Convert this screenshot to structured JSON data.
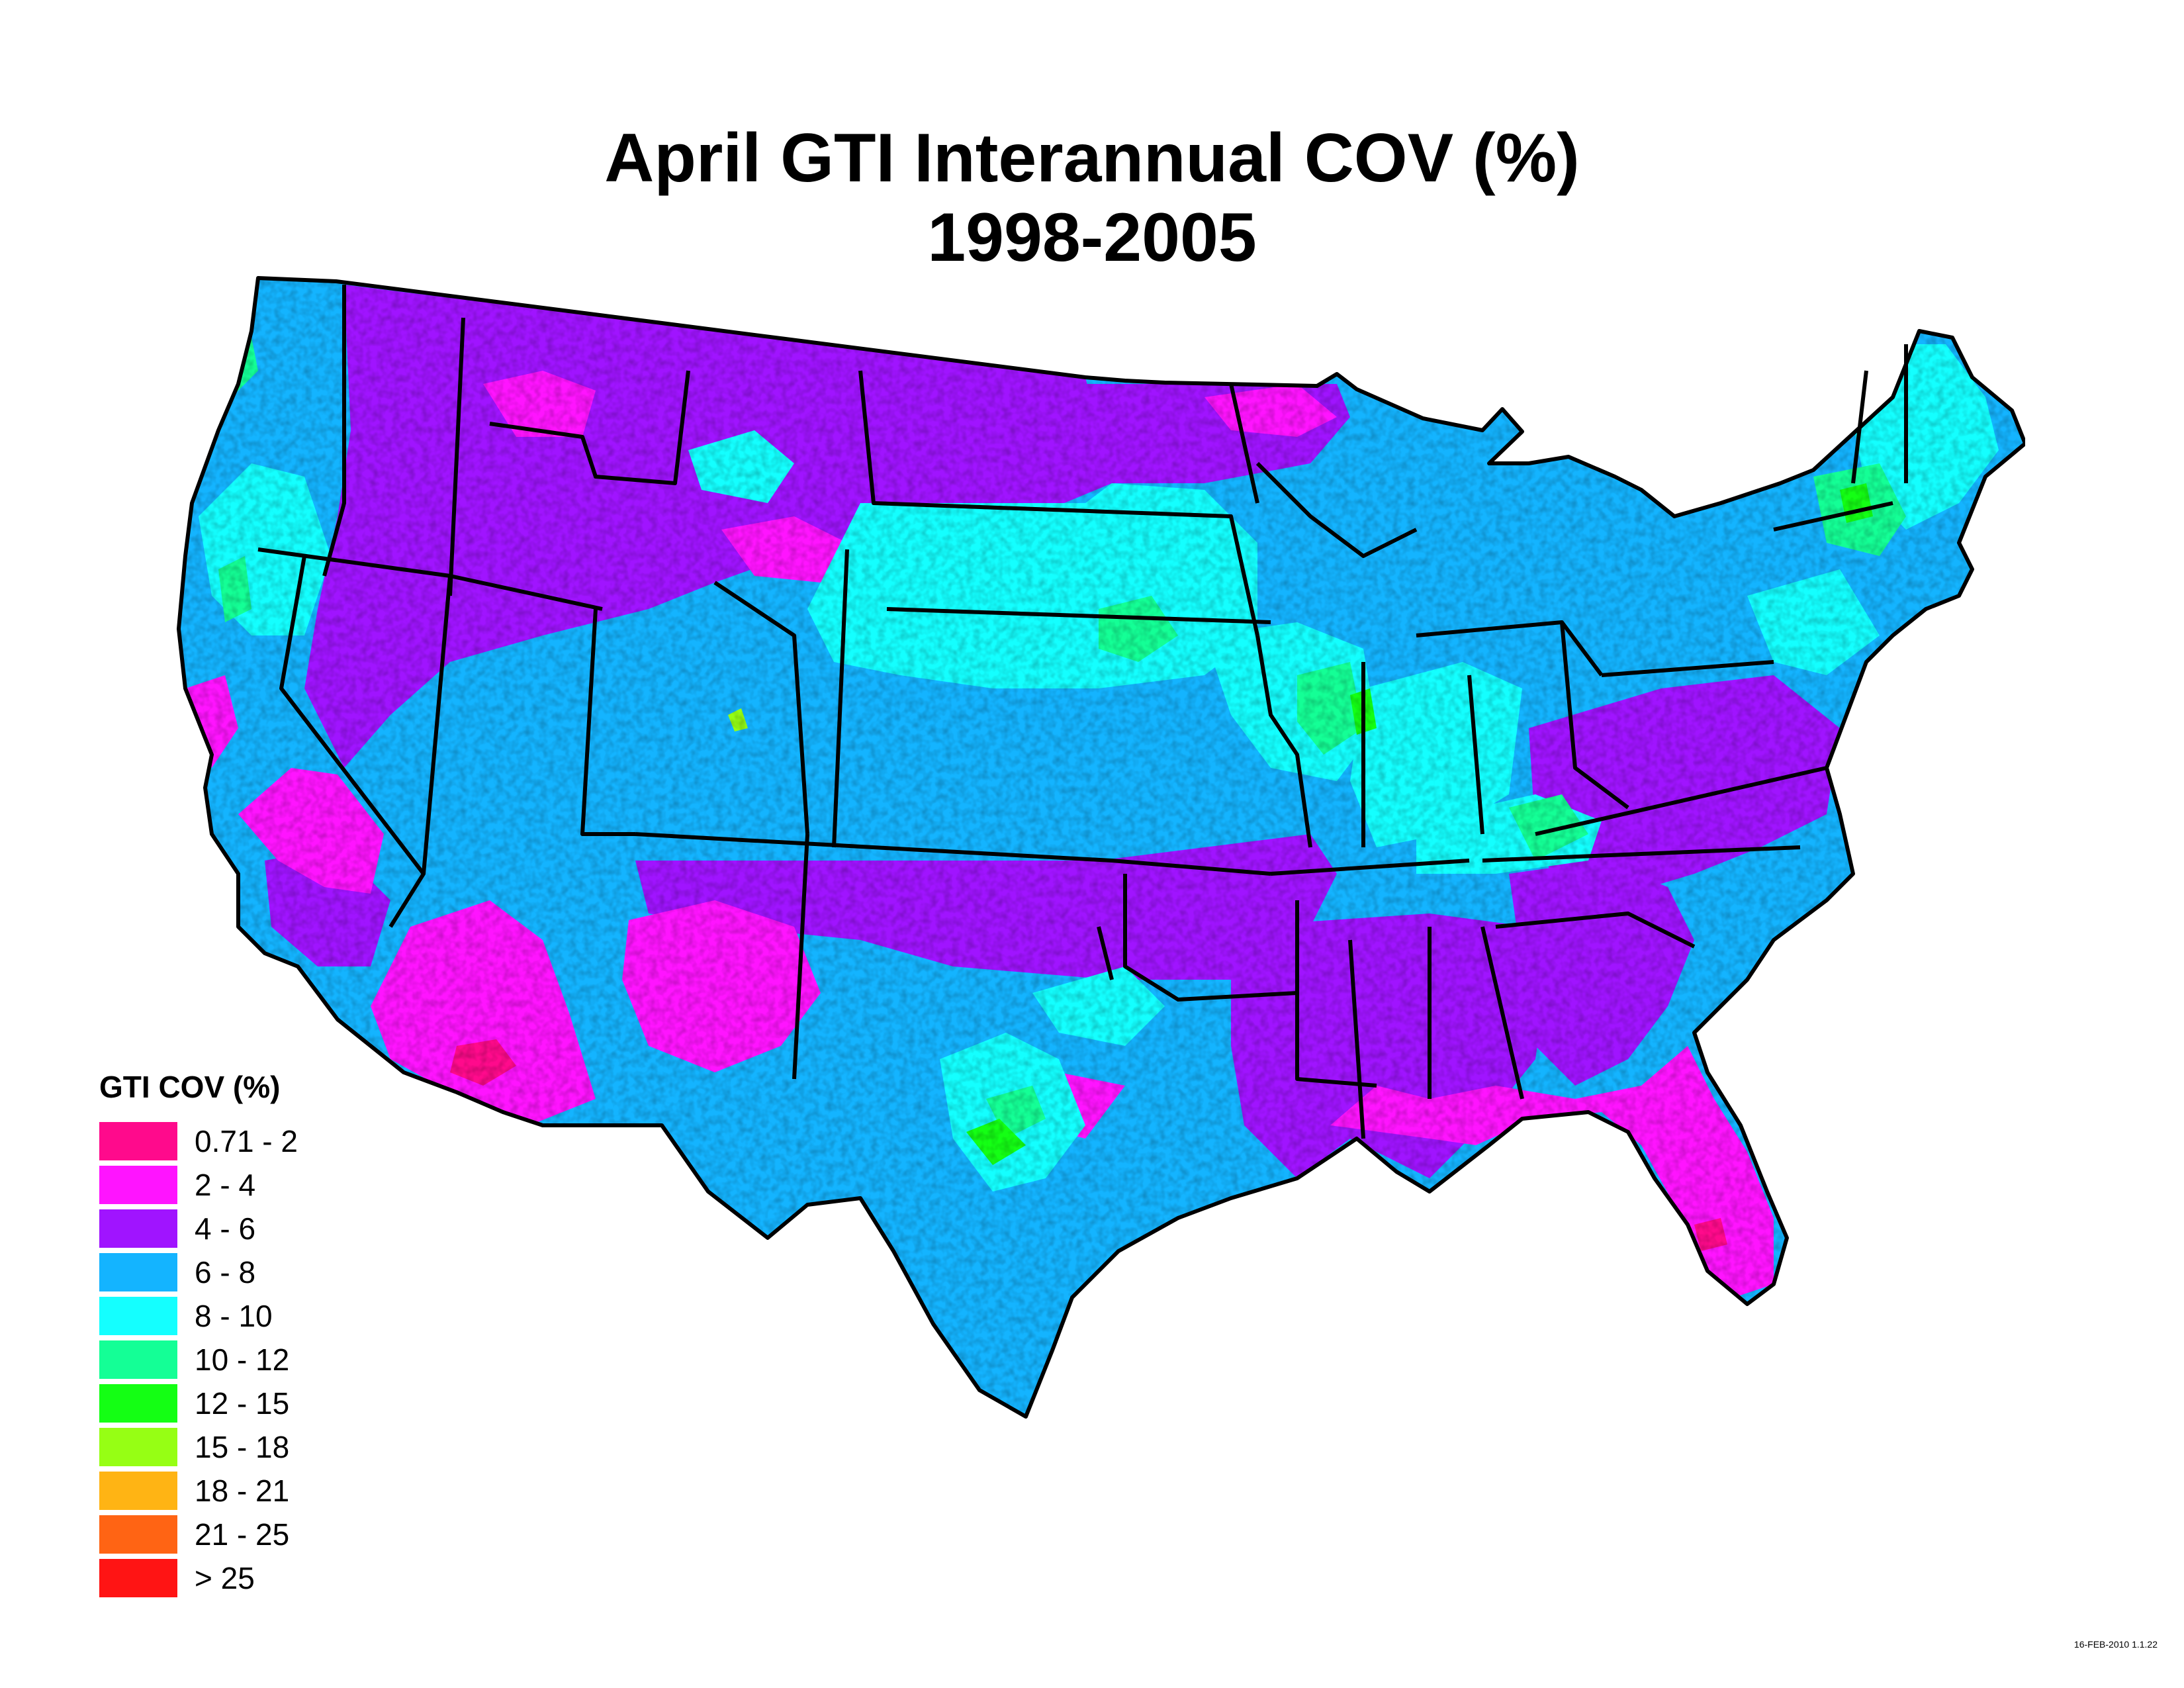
{
  "title": {
    "line1": "April GTI Interannual COV (%)",
    "line2": "1998-2005"
  },
  "legend": {
    "title": "GTI COV (%)",
    "items": [
      {
        "label": "0.71 - 2",
        "color": "#ff0a8c"
      },
      {
        "label": "2 - 4",
        "color": "#ff14ff"
      },
      {
        "label": "4 - 6",
        "color": "#a014ff"
      },
      {
        "label": "6 - 8",
        "color": "#14b4ff"
      },
      {
        "label": "8 - 10",
        "color": "#14ffff"
      },
      {
        "label": "10 - 12",
        "color": "#14ff96"
      },
      {
        "label": "12 - 15",
        "color": "#14ff14"
      },
      {
        "label": "15 - 18",
        "color": "#96ff14"
      },
      {
        "label": "18 - 21",
        "color": "#ffb414"
      },
      {
        "label": "21 - 25",
        "color": "#ff6414"
      },
      {
        "label": "> 25",
        "color": "#ff1414"
      }
    ]
  },
  "stamp": "16-FEB-2010 1.1.22"
}
